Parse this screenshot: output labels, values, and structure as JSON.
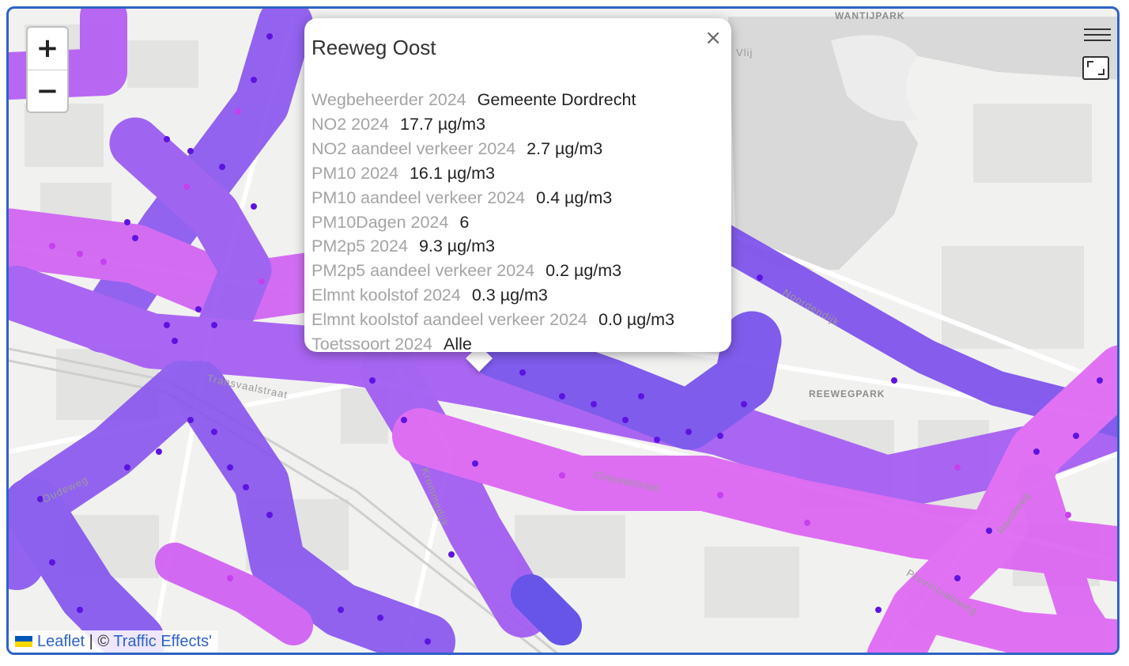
{
  "map": {
    "street_labels": [
      "Transvaalstraat",
      "Krommedijk",
      "Clayeastraat",
      "Noordendijk",
      "Oudeweg",
      "Rondweg",
      "Provincialeweg",
      "Vlij"
    ],
    "area_labels": [
      "WANTIJPARK",
      "REEWEGPARK"
    ],
    "colors": {
      "high": "#7a52ee",
      "mid": "#a559f4",
      "low": "#e465f2",
      "point": "#5d14e0"
    }
  },
  "controls": {
    "zoom_in": "+",
    "zoom_out": "−",
    "layers_icon": "layers-menu-icon",
    "fullscreen_icon": "fullscreen-icon"
  },
  "popup": {
    "title": "Reeweg Oost",
    "close": "×",
    "rows": [
      {
        "label": "Wegbeheerder 2024",
        "value": "Gemeente Dordrecht"
      },
      {
        "label": "NO2 2024",
        "value": "17.7 µg/m3"
      },
      {
        "label": "NO2 aandeel verkeer 2024",
        "value": "2.7 µg/m3"
      },
      {
        "label": "PM10 2024",
        "value": "16.1 µg/m3"
      },
      {
        "label": "PM10 aandeel verkeer 2024",
        "value": "0.4 µg/m3"
      },
      {
        "label": "PM10Dagen 2024",
        "value": "6"
      },
      {
        "label": "PM2p5 2024",
        "value": "9.3 µg/m3"
      },
      {
        "label": "PM2p5 aandeel verkeer 2024",
        "value": "0.2 µg/m3"
      },
      {
        "label": "Elmnt koolstof 2024",
        "value": "0.3 µg/m3"
      },
      {
        "label": "Elmnt koolstof aandeel verkeer 2024",
        "value": "0.0 µg/m3"
      },
      {
        "label": "Toetssoort 2024",
        "value": "Alle"
      }
    ]
  },
  "attribution": {
    "leaflet": "Leaflet",
    "separator": "| ©",
    "source": "Traffic Effects'"
  }
}
